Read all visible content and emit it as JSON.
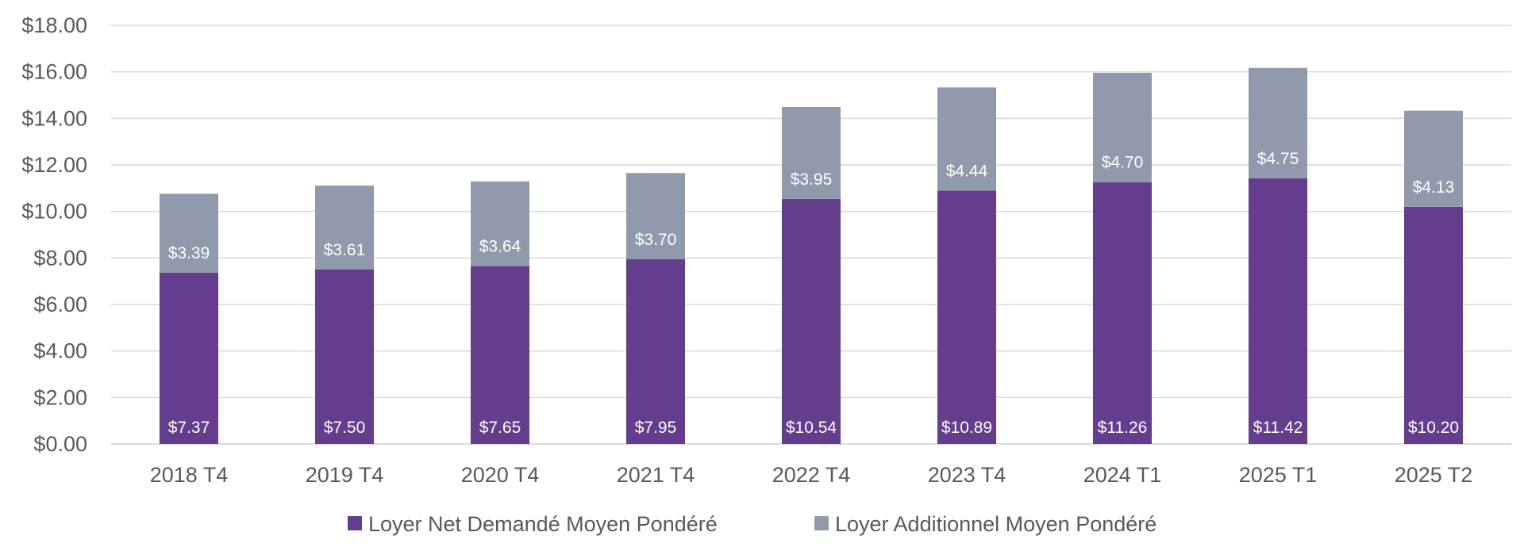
{
  "chart_data": {
    "type": "bar",
    "stacked": true,
    "categories": [
      "2018 T4",
      "2019 T4",
      "2020 T4",
      "2021 T4",
      "2022 T4",
      "2023 T4",
      "2024 T1",
      "2025 T1",
      "2025 T2"
    ],
    "series": [
      {
        "name": "Loyer Net Demandé Moyen Pondéré",
        "color": "#643d8f",
        "values": [
          7.37,
          7.5,
          7.65,
          7.95,
          10.54,
          10.89,
          11.26,
          11.42,
          10.2
        ],
        "labels": [
          "$7.37",
          "$7.50",
          "$7.65",
          "$7.95",
          "$10.54",
          "$10.89",
          "$11.26",
          "$11.42",
          "$10.20"
        ]
      },
      {
        "name": "Loyer Additionnel Moyen Pondéré",
        "color": "#919aac",
        "values": [
          3.39,
          3.61,
          3.64,
          3.7,
          3.95,
          4.44,
          4.7,
          4.75,
          4.13
        ],
        "labels": [
          "$3.39",
          "$3.61",
          "$3.64",
          "$3.70",
          "$3.95",
          "$4.44",
          "$4.70",
          "$4.75",
          "$4.13"
        ]
      }
    ],
    "yticks": [
      0,
      2,
      4,
      6,
      8,
      10,
      12,
      14,
      16,
      18
    ],
    "ytick_labels": [
      "$0.00",
      "$2.00",
      "$4.00",
      "$6.00",
      "$8.00",
      "$10.00",
      "$12.00",
      "$14.00",
      "$16.00",
      "$18.00"
    ],
    "ylim": [
      0,
      18
    ],
    "grid": true,
    "legend": "bottom"
  }
}
